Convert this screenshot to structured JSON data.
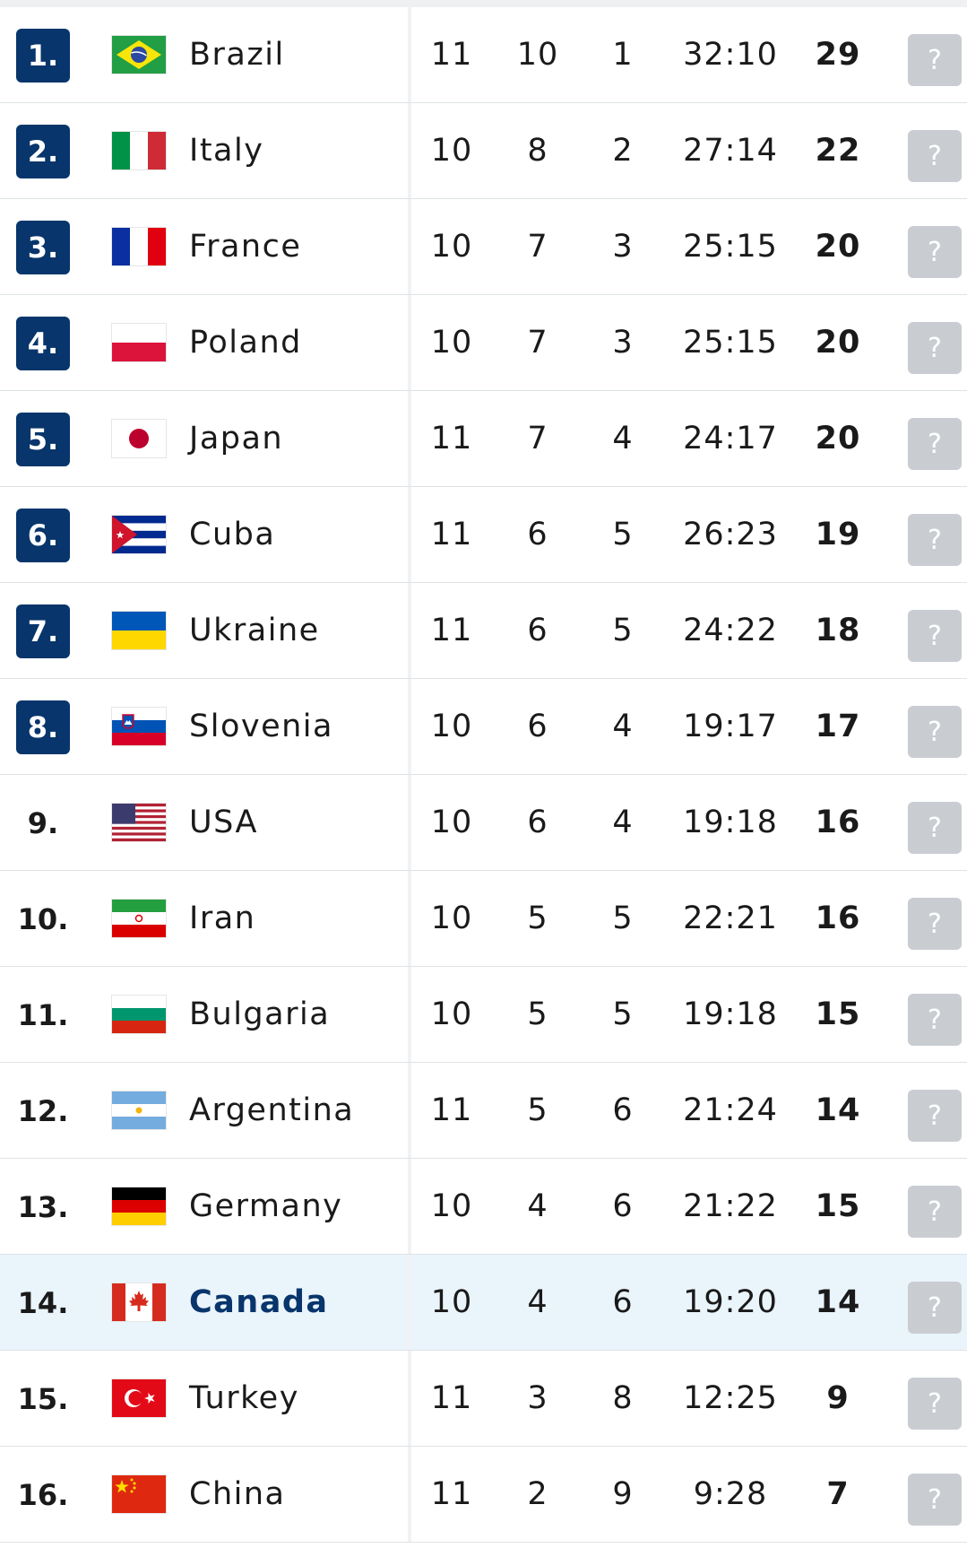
{
  "form_placeholder": "?",
  "colors": {
    "rank_box": "#08356b",
    "highlight_row": "#eaf4fb",
    "form_badge": "#c9cdd1"
  },
  "rows": [
    {
      "rank": "1.",
      "team": "Brazil",
      "mp": "11",
      "w": "10",
      "l": "1",
      "sets": "32:10",
      "pts": "29",
      "flag": "brazil-flag-icon",
      "boxed": true,
      "highlight": false
    },
    {
      "rank": "2.",
      "team": "Italy",
      "mp": "10",
      "w": "8",
      "l": "2",
      "sets": "27:14",
      "pts": "22",
      "flag": "italy-flag-icon",
      "boxed": true,
      "highlight": false
    },
    {
      "rank": "3.",
      "team": "France",
      "mp": "10",
      "w": "7",
      "l": "3",
      "sets": "25:15",
      "pts": "20",
      "flag": "france-flag-icon",
      "boxed": true,
      "highlight": false
    },
    {
      "rank": "4.",
      "team": "Poland",
      "mp": "10",
      "w": "7",
      "l": "3",
      "sets": "25:15",
      "pts": "20",
      "flag": "poland-flag-icon",
      "boxed": true,
      "highlight": false
    },
    {
      "rank": "5.",
      "team": "Japan",
      "mp": "11",
      "w": "7",
      "l": "4",
      "sets": "24:17",
      "pts": "20",
      "flag": "japan-flag-icon",
      "boxed": true,
      "highlight": false
    },
    {
      "rank": "6.",
      "team": "Cuba",
      "mp": "11",
      "w": "6",
      "l": "5",
      "sets": "26:23",
      "pts": "19",
      "flag": "cuba-flag-icon",
      "boxed": true,
      "highlight": false
    },
    {
      "rank": "7.",
      "team": "Ukraine",
      "mp": "11",
      "w": "6",
      "l": "5",
      "sets": "24:22",
      "pts": "18",
      "flag": "ukraine-flag-icon",
      "boxed": true,
      "highlight": false
    },
    {
      "rank": "8.",
      "team": "Slovenia",
      "mp": "10",
      "w": "6",
      "l": "4",
      "sets": "19:17",
      "pts": "17",
      "flag": "slovenia-flag-icon",
      "boxed": true,
      "highlight": false
    },
    {
      "rank": "9.",
      "team": "USA",
      "mp": "10",
      "w": "6",
      "l": "4",
      "sets": "19:18",
      "pts": "16",
      "flag": "usa-flag-icon",
      "boxed": false,
      "highlight": false
    },
    {
      "rank": "10.",
      "team": "Iran",
      "mp": "10",
      "w": "5",
      "l": "5",
      "sets": "22:21",
      "pts": "16",
      "flag": "iran-flag-icon",
      "boxed": false,
      "highlight": false
    },
    {
      "rank": "11.",
      "team": "Bulgaria",
      "mp": "10",
      "w": "5",
      "l": "5",
      "sets": "19:18",
      "pts": "15",
      "flag": "bulgaria-flag-icon",
      "boxed": false,
      "highlight": false
    },
    {
      "rank": "12.",
      "team": "Argentina",
      "mp": "11",
      "w": "5",
      "l": "6",
      "sets": "21:24",
      "pts": "14",
      "flag": "argentina-flag-icon",
      "boxed": false,
      "highlight": false
    },
    {
      "rank": "13.",
      "team": "Germany",
      "mp": "10",
      "w": "4",
      "l": "6",
      "sets": "21:22",
      "pts": "15",
      "flag": "germany-flag-icon",
      "boxed": false,
      "highlight": false
    },
    {
      "rank": "14.",
      "team": "Canada",
      "mp": "10",
      "w": "4",
      "l": "6",
      "sets": "19:20",
      "pts": "14",
      "flag": "canada-flag-icon",
      "boxed": false,
      "highlight": true
    },
    {
      "rank": "15.",
      "team": "Turkey",
      "mp": "11",
      "w": "3",
      "l": "8",
      "sets": "12:25",
      "pts": "9",
      "flag": "turkey-flag-icon",
      "boxed": false,
      "highlight": false
    },
    {
      "rank": "16.",
      "team": "China",
      "mp": "11",
      "w": "2",
      "l": "9",
      "sets": "9:28",
      "pts": "7",
      "flag": "china-flag-icon",
      "boxed": false,
      "highlight": false
    }
  ]
}
